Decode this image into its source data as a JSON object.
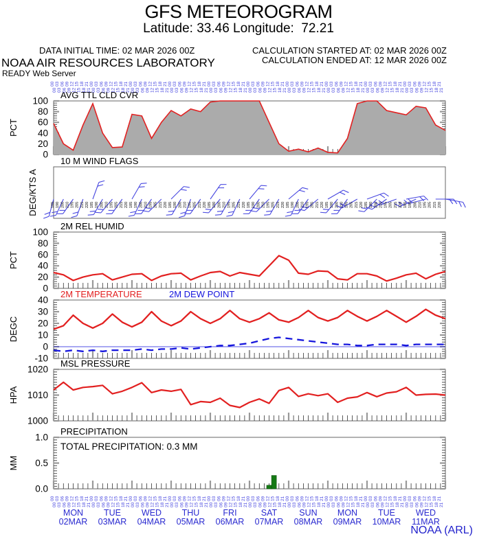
{
  "header": {
    "title": "GFS METEOROGRAM",
    "subtitle": "Latitude: 33.46 Longitude:  72.21",
    "data_initial_time": "DATA INITIAL TIME: 02 MAR 2026 00Z",
    "org": "NOAA AIR RESOURCES LABORATORY",
    "server": "READY Web Server",
    "calc_started": "CALCULATION STARTED AT: 02 MAR 2026 00Z",
    "calc_ended": "CALCULATION ENDED AT: 12 MAR 2026 00Z"
  },
  "footer": {
    "credit": "NOAA (ARL)"
  },
  "colors": {
    "red": "#e22020",
    "blue": "#1515dd",
    "gray_fill": "#ababab",
    "border": "#666666",
    "tick": "#333333",
    "major_tick": "#999999",
    "label_blue": "#2a2ad0",
    "barb_blue": "#4646e0",
    "green": "#157a15"
  },
  "x_axis": {
    "total_hours": 240,
    "step_hours": 6,
    "minor_tick_hours": 3,
    "day_tick_hours": 24,
    "rotated_hour_labels": [
      "00",
      "03",
      "06",
      "09",
      "12",
      "15",
      "18",
      "21"
    ],
    "day_labels": [
      {
        "name": "MON",
        "date": "02MAR"
      },
      {
        "name": "TUE",
        "date": "03MAR"
      },
      {
        "name": "WED",
        "date": "04MAR"
      },
      {
        "name": "THU",
        "date": "05MAR"
      },
      {
        "name": "FRI",
        "date": "06MAR"
      },
      {
        "name": "SAT",
        "date": "07MAR"
      },
      {
        "name": "SUN",
        "date": "08MAR"
      },
      {
        "name": "MON",
        "date": "09MAR"
      },
      {
        "name": "TUE",
        "date": "10MAR"
      },
      {
        "name": "WED",
        "date": "11MAR"
      }
    ]
  },
  "chart_data": [
    {
      "id": "cloud",
      "type": "area",
      "title": "AVG TTL CLD CVR",
      "ylabel": "PCT",
      "ylim": [
        0,
        100
      ],
      "yticks": [
        0,
        20,
        40,
        60,
        80,
        100
      ],
      "minor_step": 4,
      "values": [
        58,
        20,
        8,
        55,
        95,
        40,
        13,
        14,
        75,
        72,
        30,
        60,
        82,
        72,
        85,
        80,
        98,
        100,
        100,
        100,
        100,
        100,
        60,
        20,
        6,
        10,
        5,
        12,
        4,
        3,
        30,
        95,
        100,
        100,
        82,
        78,
        74,
        90,
        87,
        55,
        45
      ]
    },
    {
      "id": "wind",
      "type": "windbarbs",
      "title": "10 M  WIND FLAGS",
      "ylabel": "DEG/KTS A",
      "directions": [
        195,
        205,
        215,
        200,
        20,
        210,
        220,
        215,
        30,
        205,
        215,
        225,
        45,
        210,
        200,
        215,
        35,
        220,
        210,
        205,
        40,
        215,
        225,
        210,
        50,
        205,
        215,
        230,
        60,
        220,
        215,
        240,
        70,
        225,
        235,
        250,
        80,
        245,
        255,
        90,
        100
      ],
      "rotated_value_labels": [
        "185",
        "190",
        "200",
        "210",
        "195",
        "205",
        "215",
        "220"
      ]
    },
    {
      "id": "rh",
      "type": "line",
      "title": "2M REL HUMID",
      "ylabel": "PCT",
      "ylim": [
        0,
        100
      ],
      "yticks": [
        0,
        20,
        40,
        60,
        80,
        100
      ],
      "minor_step": 4,
      "values": [
        28,
        24,
        14,
        20,
        24,
        26,
        15,
        20,
        25,
        26,
        14,
        22,
        26,
        27,
        15,
        22,
        28,
        30,
        22,
        28,
        25,
        22,
        40,
        58,
        50,
        27,
        25,
        31,
        30,
        17,
        15,
        26,
        26,
        22,
        13,
        18,
        24,
        27,
        17,
        25,
        30
      ]
    },
    {
      "id": "temp",
      "type": "lines",
      "ylabel": "DEGC",
      "ylim": [
        -10,
        40
      ],
      "yticks": [
        -10,
        0,
        10,
        20,
        30,
        40
      ],
      "minor_step": 2,
      "zero_line": 0,
      "series": [
        {
          "name": "2M TEMPERATURE",
          "style": "solid",
          "color_key": "red",
          "values": [
            15,
            18,
            27,
            20,
            16,
            20,
            28,
            21,
            17,
            21,
            30,
            22,
            18,
            22,
            30,
            24,
            20,
            24,
            31,
            24,
            21,
            24,
            29,
            23,
            21,
            25,
            31,
            25,
            22,
            25,
            31,
            26,
            22,
            26,
            31,
            26,
            21,
            26,
            32,
            27,
            24
          ]
        },
        {
          "name": "2M   DEW POINT",
          "style": "dashed",
          "color_key": "blue",
          "values": [
            -3,
            -4,
            -3,
            -4,
            -3,
            -4,
            -3,
            -3,
            -3,
            -2,
            -3,
            -2,
            -2,
            -1,
            -2,
            -1,
            0,
            1,
            1,
            2,
            3,
            5,
            7,
            8,
            7,
            6,
            5,
            4,
            3,
            2,
            2,
            1,
            1,
            2,
            2,
            2,
            1,
            2,
            2,
            2,
            2
          ]
        }
      ]
    },
    {
      "id": "pres",
      "type": "line",
      "title": "MSL PRESSURE",
      "ylabel": "HPA",
      "ylim": [
        1000,
        1020
      ],
      "yticks": [
        1000,
        1010,
        1020
      ],
      "minor_step": 1,
      "values": [
        1012,
        1015,
        1012,
        1013,
        1013.3,
        1013.8,
        1010.5,
        1011.5,
        1013,
        1014.8,
        1011,
        1012,
        1011.5,
        1012.2,
        1006.3,
        1007.5,
        1007.2,
        1008.8,
        1006,
        1005.2,
        1007.2,
        1008.5,
        1006.8,
        1011.8,
        1013,
        1009.5,
        1010.5,
        1009.8,
        1010.5,
        1007.2,
        1008.8,
        1009.3,
        1011,
        1009.4,
        1010.8,
        1011.3,
        1013,
        1010,
        1010.3,
        1010.4,
        1010
      ]
    },
    {
      "id": "precip",
      "type": "bars",
      "title": "PRECIPITATION",
      "annotation": "TOTAL PRECIPITATION:   0.3 MM",
      "ylabel": "MM",
      "ylim": [
        0,
        1
      ],
      "yticks": [
        "0.0",
        "0.5",
        "1.0"
      ],
      "minor_step": 0.05,
      "bars": [
        {
          "hour": 132,
          "value": 0.07
        },
        {
          "hour": 135,
          "value": 0.26
        }
      ]
    }
  ]
}
